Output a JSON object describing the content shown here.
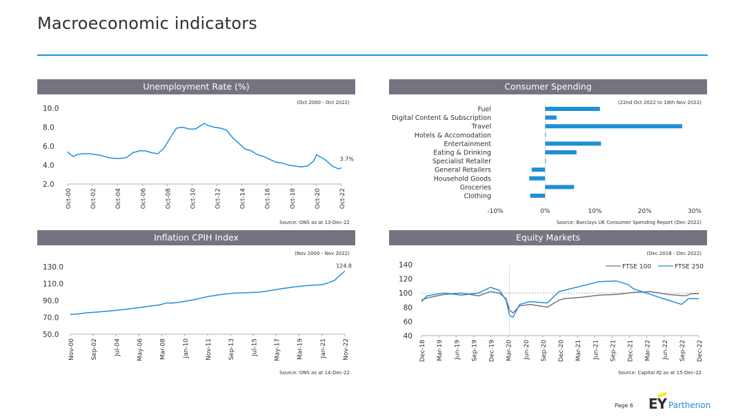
{
  "page": {
    "title": "Macroeconomic indicators",
    "page_number": "Page 6",
    "logo_text": "EY",
    "logo_sub": "Parthenon",
    "accent_color": "#1e8fd8",
    "header_bg": "#747480",
    "line_color": "#1e8fd8"
  },
  "chart_data": [
    {
      "type": "line",
      "title": "Unemployment Rate (%)",
      "subtitle": "(Oct 2000 - Oct 2022)",
      "source": "Source: ONS as at 13-Dec-22",
      "end_label": "3.7%",
      "yticks": [
        "10.0",
        "8.0",
        "6.0",
        "4.0",
        "2.0"
      ],
      "ylim": [
        2,
        10
      ],
      "xticks": [
        "Oct-00",
        "Oct-02",
        "Oct-04",
        "Oct-06",
        "Oct-08",
        "Oct-10",
        "Oct-12",
        "Oct-14",
        "Oct-16",
        "Oct-18",
        "Oct-20",
        "Oct-22"
      ],
      "xlim": [
        2000.75,
        2022.75
      ],
      "series": [
        {
          "x": [
            2000.75,
            2001.0,
            2001.25,
            2001.5,
            2002.0,
            2002.5,
            2003.0,
            2003.5,
            2004.0,
            2004.5,
            2005.0,
            2005.5,
            2006.0,
            2006.5,
            2007.0,
            2007.5,
            2008.0,
            2008.5,
            2009.0,
            2009.5,
            2010.0,
            2010.5,
            2011.0,
            2011.5,
            2011.75,
            2012.0,
            2012.5,
            2013.0,
            2013.5,
            2014.0,
            2014.5,
            2015.0,
            2015.5,
            2016.0,
            2016.5,
            2017.0,
            2017.5,
            2018.0,
            2018.5,
            2019.0,
            2019.5,
            2020.0,
            2020.5,
            2020.75,
            2021.0,
            2021.5,
            2022.0,
            2022.5,
            2022.75
          ],
          "values": [
            5.4,
            5.1,
            4.9,
            5.1,
            5.2,
            5.2,
            5.1,
            5.0,
            4.8,
            4.7,
            4.7,
            4.8,
            5.3,
            5.5,
            5.5,
            5.3,
            5.2,
            5.8,
            6.9,
            7.9,
            8.0,
            7.8,
            7.8,
            8.2,
            8.4,
            8.2,
            8.0,
            7.9,
            7.7,
            6.9,
            6.3,
            5.7,
            5.5,
            5.1,
            4.9,
            4.6,
            4.3,
            4.2,
            4.0,
            3.9,
            3.8,
            3.9,
            4.4,
            5.1,
            4.9,
            4.5,
            3.9,
            3.6,
            3.7
          ]
        }
      ]
    },
    {
      "type": "bar",
      "orientation": "horizontal",
      "title": "Consumer Spending",
      "subtitle": "(22nd Oct 2022 to 18th Nov 2022)",
      "source": "Source: Barclays UK Consumer Spending Report (Dec-2022)",
      "categories": [
        "Fuel",
        "Digital Content & Subscription",
        "Travel",
        "Hotels & Accomodation",
        "Entertainment",
        "Eating & Drinking",
        "Specialist Retailer",
        "General Retailers",
        "Household Goods",
        "Groceries",
        "Clothing"
      ],
      "values": [
        11.0,
        2.3,
        27.5,
        0.0,
        11.2,
        6.3,
        0.1,
        -2.7,
        -3.2,
        5.8,
        -3.0
      ],
      "xticks": [
        "-10%",
        "0%",
        "10%",
        "20%",
        "30%"
      ],
      "xlim": [
        -10,
        30
      ]
    },
    {
      "type": "line",
      "title": "Inflation CPIH Index",
      "subtitle": "(Nov 2000 - Nov 2022)",
      "source": "Source: ONS as at 14-Dec-22",
      "end_label": "124.8",
      "yticks": [
        "130.0",
        "110.0",
        "90.0",
        "70.0",
        "50.0"
      ],
      "ylim": [
        50,
        130
      ],
      "xticks": [
        "Nov-00",
        "Sep-02",
        "Jul-04",
        "May-06",
        "Mar-08",
        "Jan-10",
        "Nov-11",
        "Sep-13",
        "Jul-15",
        "May-17",
        "Mar-19",
        "Jan-21",
        "Nov-22"
      ],
      "xlim": [
        2000.83,
        2022.83
      ],
      "series": [
        {
          "x": [
            2000.83,
            2001.5,
            2002.0,
            2003.0,
            2004.0,
            2005.0,
            2006.0,
            2007.0,
            2008.0,
            2008.5,
            2009.0,
            2009.5,
            2010.0,
            2010.5,
            2011.0,
            2011.5,
            2012.0,
            2013.0,
            2014.0,
            2015.0,
            2016.0,
            2017.0,
            2018.0,
            2019.0,
            2020.0,
            2020.5,
            2021.0,
            2021.5,
            2022.0,
            2022.3,
            2022.6,
            2022.83
          ],
          "values": [
            73.4,
            74.1,
            75.2,
            76.3,
            77.5,
            79.1,
            80.9,
            82.9,
            84.8,
            87.0,
            86.9,
            87.8,
            89.0,
            90.3,
            91.6,
            93.5,
            95.0,
            97.3,
            98.8,
            99.2,
            99.8,
            102.2,
            104.5,
            106.4,
            107.9,
            108.3,
            108.7,
            111.0,
            113.8,
            118.0,
            122.0,
            124.8
          ]
        }
      ]
    },
    {
      "type": "line",
      "title": "Equity Markets",
      "subtitle": "(Dec 2018 - Dec 2022)",
      "source": "Source: Capital IQ as at 15-Dec-22",
      "yticks": [
        "140",
        "120",
        "100",
        "80",
        "60",
        "40"
      ],
      "ylim": [
        40,
        140
      ],
      "xticks": [
        "Dec-18",
        "Mar-19",
        "Jun-19",
        "Sep-19",
        "Dec-19",
        "Mar-20",
        "Jun-20",
        "Sep-20",
        "Dec-20",
        "Mar-21",
        "Jun-21",
        "Sep-21",
        "Dec-21",
        "Mar-22",
        "Jun-22",
        "Sep-22",
        "Dec-22"
      ],
      "xlim": [
        2018.92,
        2022.95
      ],
      "baseline": 100,
      "series": [
        {
          "name": "FTSE 100",
          "color": "#747480",
          "x": [
            2018.92,
            2019.0,
            2019.25,
            2019.5,
            2019.75,
            2019.92,
            2020.05,
            2020.15,
            2020.2,
            2020.25,
            2020.35,
            2020.5,
            2020.75,
            2020.92,
            2021.0,
            2021.25,
            2021.5,
            2021.75,
            2021.92,
            2022.0,
            2022.25,
            2022.5,
            2022.75,
            2022.85,
            2022.95
          ],
          "values": [
            90,
            93,
            98,
            100,
            96,
            102,
            100,
            92,
            76,
            72,
            82,
            84,
            80,
            90,
            92,
            94,
            97,
            98,
            100,
            101,
            102,
            98,
            96,
            99,
            99
          ]
        },
        {
          "name": "FTSE 250",
          "color": "#1e8fd8",
          "x": [
            2018.92,
            2019.0,
            2019.25,
            2019.5,
            2019.75,
            2019.92,
            2020.05,
            2020.15,
            2020.2,
            2020.25,
            2020.35,
            2020.5,
            2020.75,
            2020.92,
            2021.0,
            2021.25,
            2021.5,
            2021.75,
            2021.92,
            2022.0,
            2022.25,
            2022.5,
            2022.7,
            2022.8,
            2022.95
          ],
          "values": [
            88,
            96,
            100,
            97,
            100,
            108,
            104,
            90,
            68,
            66,
            84,
            88,
            86,
            102,
            104,
            110,
            116,
            117,
            112,
            106,
            98,
            90,
            84,
            92,
            92
          ]
        }
      ]
    }
  ]
}
